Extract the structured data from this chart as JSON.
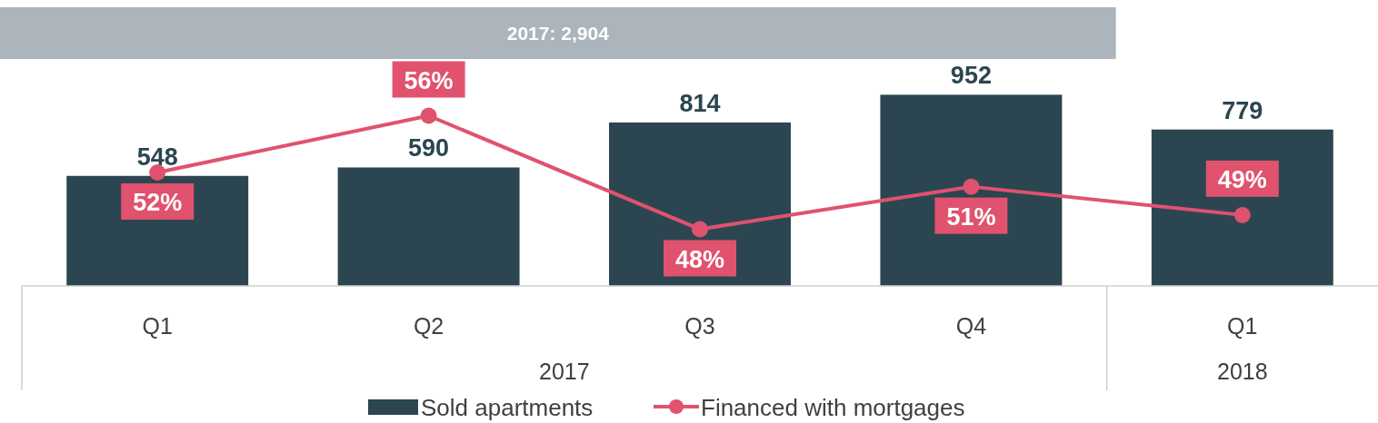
{
  "chart_data": {
    "type": "bar",
    "categories": [
      "Q1",
      "Q2",
      "Q3",
      "Q4",
      "Q1"
    ],
    "series": [
      {
        "name": "Sold apartments",
        "color": "#2b4651",
        "values": [
          548,
          590,
          814,
          952,
          779
        ]
      },
      {
        "name": "Financed with mortgages",
        "type": "line",
        "axis": "y2",
        "color": "#e0526e",
        "values": [
          52,
          56,
          48,
          51,
          49
        ],
        "value_labels": [
          "52%",
          "56%",
          "48%",
          "51%",
          "49%"
        ]
      }
    ],
    "ylim": [
      0,
      1130
    ],
    "y2lim": [
      44,
      60
    ],
    "data_labels": true,
    "marker": "circle",
    "line_style": "solid",
    "legend": "bottom",
    "tick_labels": "x",
    "annotations": [
      "2017: 2,904",
      "2017",
      "2018"
    ]
  }
}
